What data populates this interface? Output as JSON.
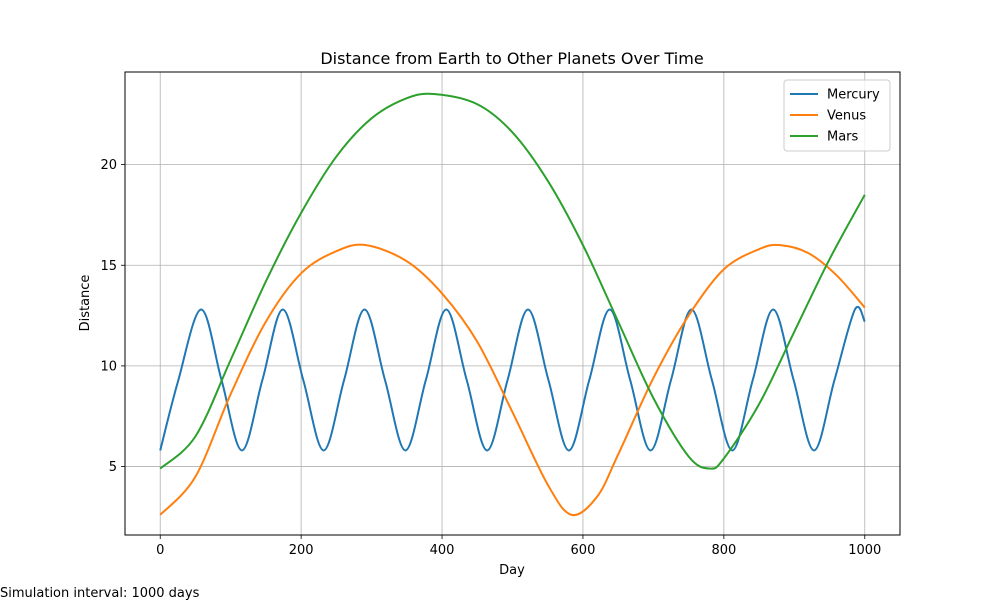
{
  "caption": "Simulation interval: 1000 days",
  "chart_data": {
    "type": "line",
    "title": "Distance from Earth to Other Planets Over Time",
    "xlabel": "Day",
    "ylabel": "Distance",
    "xlim": [
      -50,
      1050
    ],
    "ylim": [
      1.6,
      24.6
    ],
    "xticks": [
      0,
      200,
      400,
      600,
      800,
      1000
    ],
    "yticks": [
      5,
      10,
      15,
      20
    ],
    "grid": true,
    "legend": "top-right",
    "series": [
      {
        "name": "Mercury",
        "color": "#1f77b4",
        "x": [
          0,
          25,
          58,
          87,
          116,
          145,
          174,
          203,
          232,
          261,
          290,
          319,
          348,
          377,
          406,
          435,
          464,
          493,
          522,
          551,
          580,
          609,
          638,
          667,
          696,
          725,
          754,
          783,
          812,
          841,
          870,
          899,
          928,
          957,
          986,
          1000
        ],
        "y": [
          5.8,
          9.2,
          12.8,
          9.3,
          5.8,
          9.3,
          12.8,
          9.3,
          5.8,
          9.3,
          12.8,
          9.3,
          5.8,
          9.3,
          12.8,
          9.3,
          5.8,
          9.3,
          12.8,
          9.3,
          5.8,
          9.3,
          12.8,
          9.3,
          5.8,
          9.3,
          12.8,
          9.3,
          5.8,
          9.3,
          12.8,
          9.3,
          5.8,
          9.3,
          12.8,
          12.2
        ]
      },
      {
        "name": "Venus",
        "color": "#ff7f0e",
        "x": [
          0,
          50,
          100,
          150,
          200,
          250,
          292,
          350,
          400,
          450,
          500,
          550,
          584,
          620,
          650,
          700,
          750,
          800,
          850,
          880,
          920,
          960,
          1000
        ],
        "y": [
          2.6,
          4.5,
          8.6,
          12.2,
          14.6,
          15.7,
          16.0,
          15.2,
          13.6,
          11.2,
          7.7,
          4.1,
          2.6,
          3.5,
          5.6,
          9.4,
          12.5,
          14.8,
          15.8,
          16.0,
          15.6,
          14.5,
          12.9
        ]
      },
      {
        "name": "Mars",
        "color": "#2ca02c",
        "x": [
          0,
          50,
          100,
          150,
          200,
          250,
          300,
          350,
          390,
          450,
          500,
          550,
          600,
          650,
          700,
          750,
          780,
          800,
          850,
          900,
          950,
          1000
        ],
        "y": [
          4.9,
          6.5,
          10.3,
          14.2,
          17.6,
          20.4,
          22.3,
          23.3,
          23.5,
          23.0,
          21.6,
          19.2,
          16.0,
          12.2,
          8.4,
          5.5,
          4.9,
          5.4,
          8.1,
          11.7,
          15.3,
          18.5
        ]
      }
    ]
  }
}
